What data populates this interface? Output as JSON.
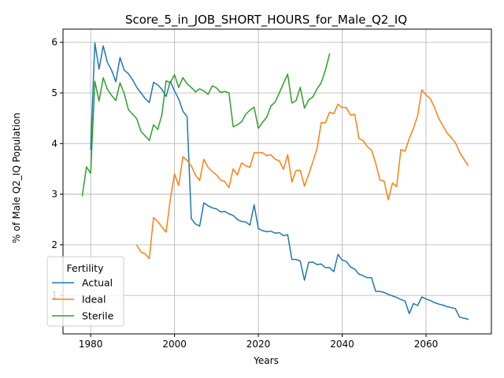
{
  "chart_data": {
    "type": "line",
    "title": "Score_5_in_JOB_SHORT_HOURS_for_Male_Q2_IQ",
    "xlabel": "Years",
    "ylabel": "% of Male Q2_IQ Population",
    "xlim": [
      1973.4,
      2075.6
    ],
    "ylim": [
      0.24,
      6.26
    ],
    "xticks": [
      1980,
      2000,
      2020,
      2040,
      2060
    ],
    "yticks": [
      1,
      2,
      3,
      4,
      5,
      6
    ],
    "grid": true,
    "legend": {
      "title": "Fertility",
      "placement": "lower-left"
    },
    "series": [
      {
        "name": "Actual",
        "color": "#1f77b4",
        "points": [
          [
            1980,
            3.88
          ],
          [
            1981,
            5.99
          ],
          [
            1982,
            5.47
          ],
          [
            1983,
            5.93
          ],
          [
            1984,
            5.6
          ],
          [
            1985,
            5.45
          ],
          [
            1986,
            5.22
          ],
          [
            1987,
            5.7
          ],
          [
            1988,
            5.45
          ],
          [
            1989,
            5.38
          ],
          [
            1990,
            5.26
          ],
          [
            1991,
            5.11
          ],
          [
            1992,
            5.0
          ],
          [
            1993,
            4.89
          ],
          [
            1994,
            4.81
          ],
          [
            1995,
            5.21
          ],
          [
            1996,
            5.16
          ],
          [
            1997,
            5.07
          ],
          [
            1998,
            4.93
          ],
          [
            1999,
            5.23
          ],
          [
            2000,
            5.04
          ],
          [
            2001,
            4.88
          ],
          [
            2002,
            4.64
          ],
          [
            2003,
            4.53
          ],
          [
            2004,
            2.52
          ],
          [
            2005,
            2.41
          ],
          [
            2006,
            2.37
          ],
          [
            2007,
            2.83
          ],
          [
            2008,
            2.77
          ],
          [
            2009,
            2.73
          ],
          [
            2010,
            2.71
          ],
          [
            2011,
            2.65
          ],
          [
            2012,
            2.66
          ],
          [
            2013,
            2.61
          ],
          [
            2014,
            2.58
          ],
          [
            2015,
            2.5
          ],
          [
            2016,
            2.46
          ],
          [
            2017,
            2.45
          ],
          [
            2018,
            2.39
          ],
          [
            2019,
            2.79
          ],
          [
            2020,
            2.32
          ],
          [
            2021,
            2.28
          ],
          [
            2022,
            2.26
          ],
          [
            2023,
            2.27
          ],
          [
            2024,
            2.23
          ],
          [
            2025,
            2.24
          ],
          [
            2026,
            2.18
          ],
          [
            2027,
            2.2
          ],
          [
            2028,
            1.71
          ],
          [
            2029,
            1.71
          ],
          [
            2030,
            1.68
          ],
          [
            2031,
            1.3
          ],
          [
            2032,
            1.65
          ],
          [
            2033,
            1.66
          ],
          [
            2034,
            1.61
          ],
          [
            2035,
            1.62
          ],
          [
            2036,
            1.55
          ],
          [
            2037,
            1.55
          ],
          [
            2038,
            1.47
          ],
          [
            2039,
            1.81
          ],
          [
            2040,
            1.7
          ],
          [
            2041,
            1.67
          ],
          [
            2042,
            1.56
          ],
          [
            2043,
            1.52
          ],
          [
            2044,
            1.42
          ],
          [
            2045,
            1.39
          ],
          [
            2046,
            1.35
          ],
          [
            2047,
            1.35
          ],
          [
            2048,
            1.08
          ],
          [
            2049,
            1.08
          ],
          [
            2050,
            1.06
          ],
          [
            2051,
            1.02
          ],
          [
            2052,
            0.99
          ],
          [
            2053,
            0.96
          ],
          [
            2054,
            0.92
          ],
          [
            2055,
            0.89
          ],
          [
            2056,
            0.64
          ],
          [
            2057,
            0.84
          ],
          [
            2058,
            0.8
          ],
          [
            2059,
            0.97
          ],
          [
            2060,
            0.93
          ],
          [
            2061,
            0.9
          ],
          [
            2062,
            0.86
          ],
          [
            2063,
            0.83
          ],
          [
            2064,
            0.81
          ],
          [
            2065,
            0.78
          ],
          [
            2066,
            0.76
          ],
          [
            2067,
            0.74
          ],
          [
            2068,
            0.57
          ],
          [
            2069,
            0.55
          ],
          [
            2070,
            0.53
          ]
        ]
      },
      {
        "name": "Ideal",
        "color": "#ff7f0e",
        "points": [
          [
            1991,
            1.99
          ],
          [
            1992,
            1.86
          ],
          [
            1993,
            1.82
          ],
          [
            1994,
            1.73
          ],
          [
            1995,
            2.54
          ],
          [
            1996,
            2.46
          ],
          [
            1997,
            2.35
          ],
          [
            1998,
            2.25
          ],
          [
            1999,
            2.9
          ],
          [
            2000,
            3.4
          ],
          [
            2001,
            3.17
          ],
          [
            2002,
            3.74
          ],
          [
            2003,
            3.67
          ],
          [
            2004,
            3.56
          ],
          [
            2005,
            3.38
          ],
          [
            2006,
            3.27
          ],
          [
            2007,
            3.69
          ],
          [
            2008,
            3.53
          ],
          [
            2009,
            3.45
          ],
          [
            2010,
            3.38
          ],
          [
            2011,
            3.28
          ],
          [
            2012,
            3.25
          ],
          [
            2013,
            3.13
          ],
          [
            2014,
            3.5
          ],
          [
            2015,
            3.38
          ],
          [
            2016,
            3.62
          ],
          [
            2017,
            3.56
          ],
          [
            2018,
            3.53
          ],
          [
            2019,
            3.82
          ],
          [
            2020,
            3.82
          ],
          [
            2021,
            3.82
          ],
          [
            2022,
            3.76
          ],
          [
            2023,
            3.78
          ],
          [
            2024,
            3.69
          ],
          [
            2025,
            3.66
          ],
          [
            2026,
            3.49
          ],
          [
            2027,
            3.78
          ],
          [
            2028,
            3.24
          ],
          [
            2029,
            3.47
          ],
          [
            2030,
            3.47
          ],
          [
            2031,
            3.16
          ],
          [
            2032,
            3.39
          ],
          [
            2033,
            3.64
          ],
          [
            2034,
            3.9
          ],
          [
            2035,
            4.41
          ],
          [
            2036,
            4.41
          ],
          [
            2037,
            4.62
          ],
          [
            2038,
            4.59
          ],
          [
            2039,
            4.78
          ],
          [
            2040,
            4.71
          ],
          [
            2041,
            4.71
          ],
          [
            2042,
            4.56
          ],
          [
            2043,
            4.58
          ],
          [
            2044,
            4.1
          ],
          [
            2045,
            4.06
          ],
          [
            2046,
            3.94
          ],
          [
            2047,
            3.87
          ],
          [
            2048,
            3.61
          ],
          [
            2049,
            3.28
          ],
          [
            2050,
            3.26
          ],
          [
            2051,
            2.89
          ],
          [
            2052,
            3.22
          ],
          [
            2053,
            3.15
          ],
          [
            2054,
            3.88
          ],
          [
            2055,
            3.85
          ],
          [
            2056,
            4.1
          ],
          [
            2057,
            4.3
          ],
          [
            2058,
            4.55
          ],
          [
            2059,
            5.06
          ],
          [
            2060,
            4.96
          ],
          [
            2061,
            4.89
          ],
          [
            2062,
            4.72
          ],
          [
            2063,
            4.5
          ],
          [
            2064,
            4.36
          ],
          [
            2065,
            4.21
          ],
          [
            2066,
            4.12
          ],
          [
            2067,
            4.02
          ],
          [
            2068,
            3.83
          ],
          [
            2069,
            3.7
          ],
          [
            2070,
            3.57
          ]
        ]
      },
      {
        "name": "Sterile",
        "color": "#2ca02c",
        "points": [
          [
            1978,
            2.97
          ],
          [
            1979,
            3.54
          ],
          [
            1980,
            3.41
          ],
          [
            1981,
            5.23
          ],
          [
            1982,
            4.84
          ],
          [
            1983,
            5.3
          ],
          [
            1984,
            5.07
          ],
          [
            1985,
            4.95
          ],
          [
            1986,
            4.85
          ],
          [
            1987,
            5.2
          ],
          [
            1988,
            4.99
          ],
          [
            1989,
            4.67
          ],
          [
            1990,
            4.58
          ],
          [
            1991,
            4.49
          ],
          [
            1992,
            4.24
          ],
          [
            1993,
            4.15
          ],
          [
            1994,
            4.06
          ],
          [
            1995,
            4.37
          ],
          [
            1996,
            4.28
          ],
          [
            1997,
            4.57
          ],
          [
            1998,
            5.24
          ],
          [
            1999,
            5.2
          ],
          [
            2000,
            5.36
          ],
          [
            2001,
            5.11
          ],
          [
            2002,
            5.3
          ],
          [
            2003,
            5.18
          ],
          [
            2004,
            5.11
          ],
          [
            2005,
            5.02
          ],
          [
            2006,
            5.08
          ],
          [
            2007,
            5.04
          ],
          [
            2008,
            4.97
          ],
          [
            2009,
            5.14
          ],
          [
            2010,
            5.1
          ],
          [
            2011,
            5.01
          ],
          [
            2012,
            5.03
          ],
          [
            2013,
            5.0
          ],
          [
            2014,
            4.33
          ],
          [
            2015,
            4.37
          ],
          [
            2016,
            4.43
          ],
          [
            2017,
            4.58
          ],
          [
            2018,
            4.66
          ],
          [
            2019,
            4.72
          ],
          [
            2020,
            4.3
          ],
          [
            2021,
            4.42
          ],
          [
            2022,
            4.52
          ],
          [
            2023,
            4.74
          ],
          [
            2024,
            4.82
          ],
          [
            2025,
            5.0
          ],
          [
            2026,
            5.19
          ],
          [
            2027,
            5.37
          ],
          [
            2028,
            4.8
          ],
          [
            2029,
            4.85
          ],
          [
            2030,
            5.11
          ],
          [
            2031,
            4.7
          ],
          [
            2032,
            4.86
          ],
          [
            2033,
            4.92
          ],
          [
            2034,
            5.08
          ],
          [
            2035,
            5.2
          ],
          [
            2036,
            5.45
          ],
          [
            2037,
            5.77
          ]
        ]
      }
    ]
  }
}
